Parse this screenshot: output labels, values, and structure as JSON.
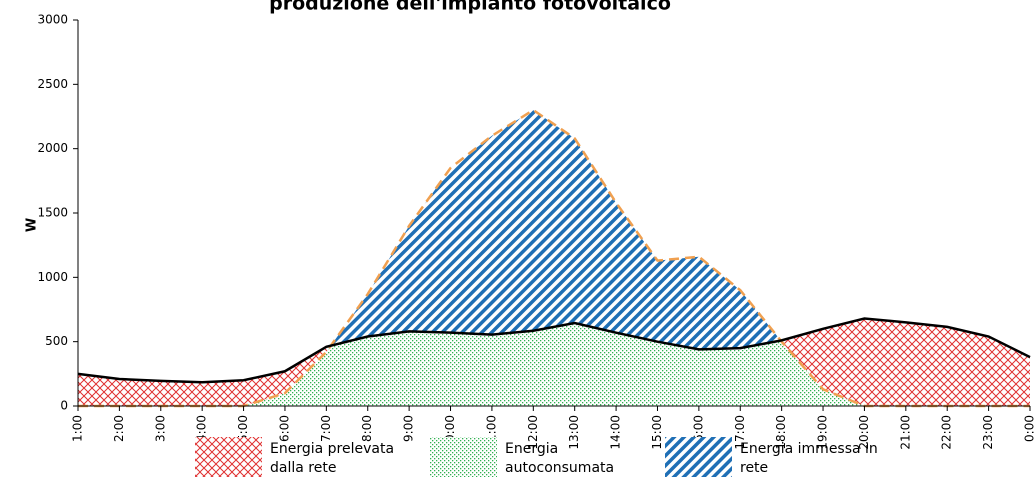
{
  "chart_data": {
    "type": "area-line",
    "title": "produzione dell'impianto fotovoltaico",
    "y_label": "W",
    "categories": [
      "1:00",
      "2:00",
      "3:00",
      "4:00",
      "5:00",
      "6:00",
      "7:00",
      "8:00",
      "9:00",
      "10:00",
      "11:00",
      "12:00",
      "13:00",
      "14:00",
      "15:00",
      "16:00",
      "17:00",
      "18:00",
      "19:00",
      "20:00",
      "21:00",
      "22:00",
      "23:00",
      "0:00"
    ],
    "series": [
      {
        "color": "#000000",
        "values": [
          250,
          210,
          195,
          185,
          200,
          270,
          460,
          540,
          580,
          570,
          555,
          585,
          645,
          570,
          500,
          440,
          450,
          510,
          600,
          680,
          650,
          615,
          540,
          380
        ]
      },
      {
        "color": "#f0a050",
        "values": [
          0,
          0,
          0,
          0,
          0,
          100,
          420,
          870,
          1400,
          1850,
          2100,
          2300,
          2080,
          1580,
          1130,
          1160,
          900,
          500,
          130,
          0,
          0,
          0,
          0,
          0
        ]
      }
    ],
    "legend": [
      {
        "label": "Energia prelevata dalla rete",
        "color": "#e03030"
      },
      {
        "label": "Energia autoconsumata",
        "color": "#30b050"
      },
      {
        "label": "Energia immessa in rete",
        "color": "#1f6fb5"
      }
    ],
    "ylim": [
      0,
      3000
    ],
    "yticks": [
      0,
      500,
      1000,
      1500,
      2000,
      2500,
      3000
    ],
    "grid": false
  }
}
